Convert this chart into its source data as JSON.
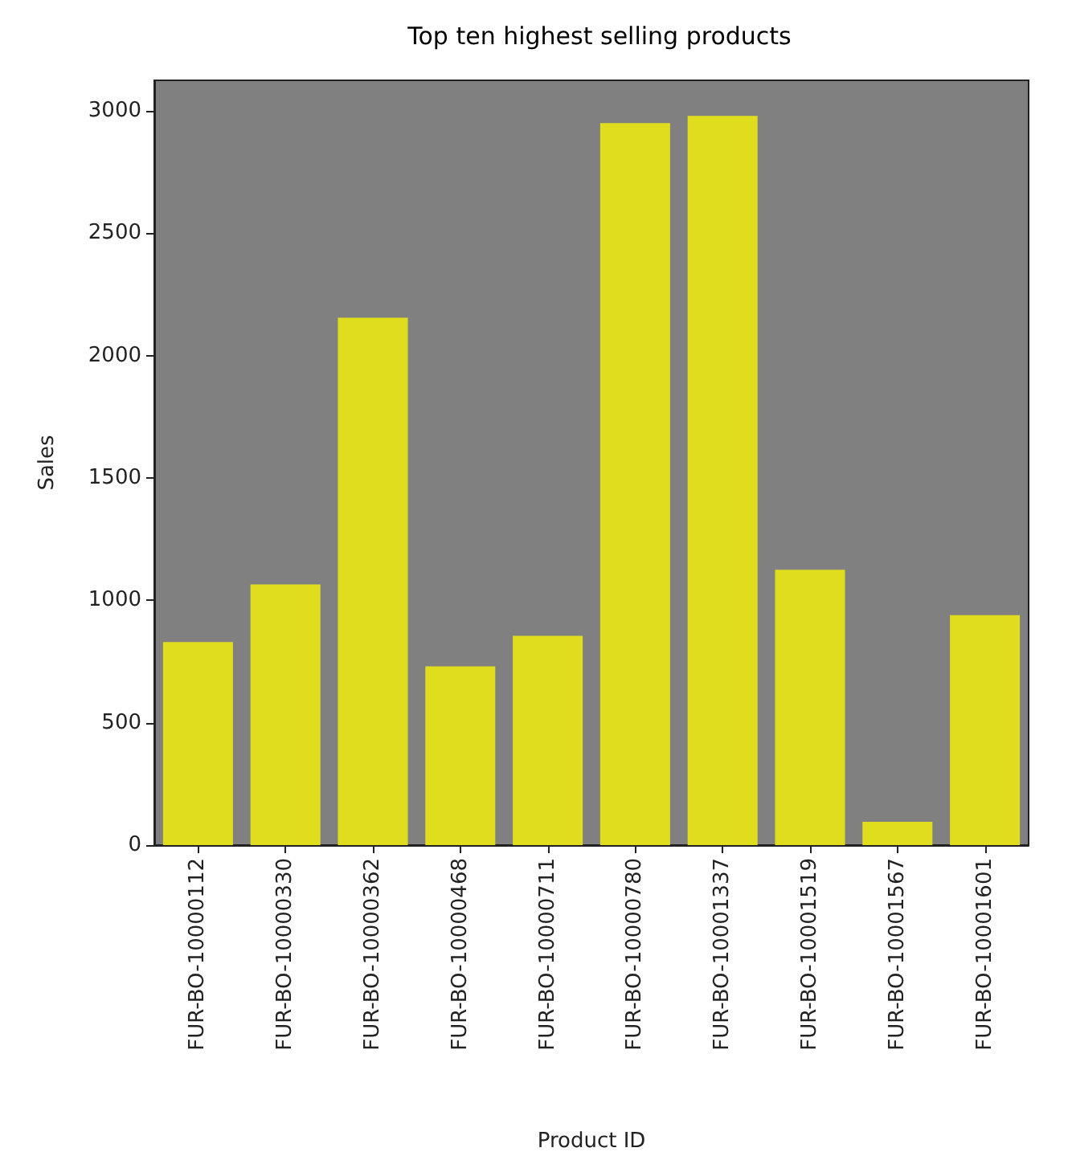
{
  "chart_data": {
    "type": "bar",
    "title": "Top ten highest selling products",
    "xlabel": "Product ID",
    "ylabel": "Sales",
    "categories": [
      "FUR-BO-10000112",
      "FUR-BO-10000330",
      "FUR-BO-10000362",
      "FUR-BO-10000468",
      "FUR-BO-10000711",
      "FUR-BO-10000780",
      "FUR-BO-10001337",
      "FUR-BO-10001519",
      "FUR-BO-10001567",
      "FUR-BO-10001601"
    ],
    "values": [
      830,
      1065,
      2155,
      730,
      855,
      2950,
      2980,
      1125,
      95,
      940
    ],
    "color": "#e0dc1e",
    "ylim": [
      0,
      3125
    ],
    "yticks": [
      0,
      500,
      1000,
      1500,
      2000,
      2500,
      3000
    ],
    "grid": false
  }
}
